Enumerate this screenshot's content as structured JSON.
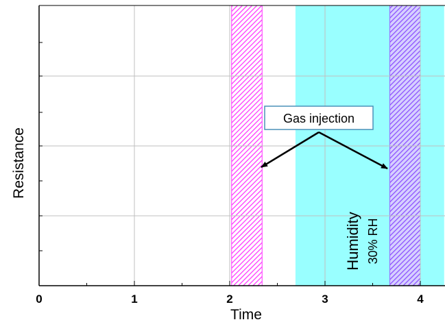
{
  "chart_data": {
    "type": "line",
    "title": "",
    "xlabel": "Time",
    "ylabel": "Resistance",
    "xlim": [
      0,
      4.25
    ],
    "x_ticks": [
      "0",
      "1",
      "2",
      "3",
      "4"
    ],
    "grid": true,
    "series": [],
    "regions": [
      {
        "kind": "gas-injection",
        "x0": 2.02,
        "x1": 2.34,
        "fill": "#ff33ff",
        "pattern": "hatched"
      },
      {
        "kind": "humidity",
        "x0": 2.69,
        "x1": 4.25,
        "fill": "#99ffff",
        "label": "Humidity",
        "sublabel": "30% RH"
      },
      {
        "kind": "gas-injection",
        "x0": 3.68,
        "x1": 4.0,
        "fill": "#9966ff",
        "pattern": "hatched"
      }
    ],
    "annotation": {
      "text": "Gas injection",
      "arrow_targets": [
        [
          2.34,
          0.42
        ],
        [
          3.66,
          0.42
        ]
      ]
    }
  },
  "colors": {
    "grid": "#bfbfbf",
    "axis": "#000000",
    "hatch_magenta": "#ff33ff",
    "hatch_violet": "#9966ff",
    "humidity": "#99ffff"
  }
}
